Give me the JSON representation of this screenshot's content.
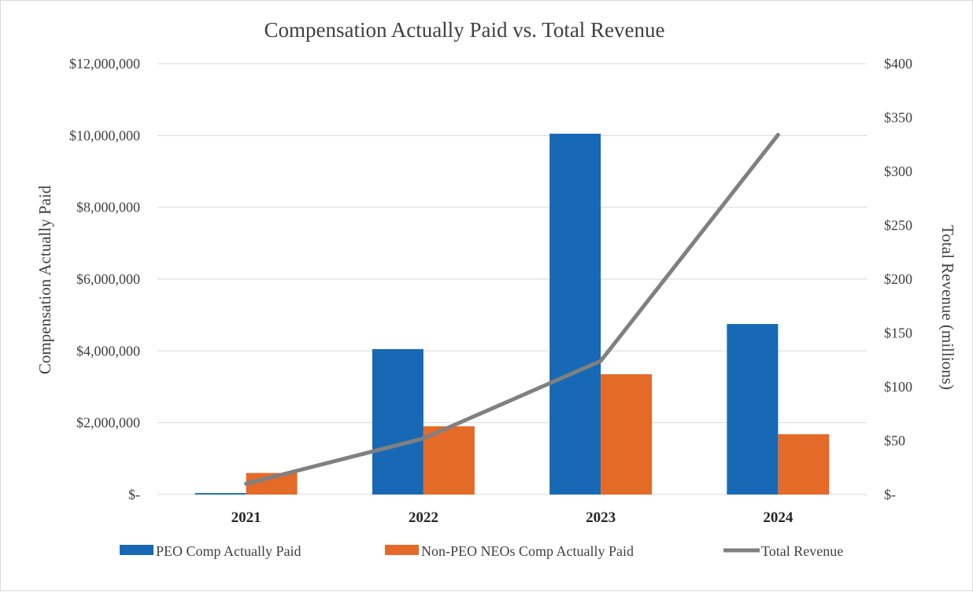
{
  "chart_data": {
    "type": "bar",
    "title": "Compensation Actually Paid vs. Total Revenue",
    "categories": [
      "2021",
      "2022",
      "2023",
      "2024"
    ],
    "ylabel": "Compensation Actually Paid",
    "y2label": "Total Revenue (millions)",
    "ylim": [
      0,
      12000000
    ],
    "y2lim": [
      0,
      400
    ],
    "y_ticks": [
      0,
      2000000,
      4000000,
      6000000,
      8000000,
      10000000,
      12000000
    ],
    "y_tick_labels": [
      "$-",
      "$2,000,000",
      "$4,000,000",
      "$6,000,000",
      "$8,000,000",
      "$10,000,000",
      "$12,000,000"
    ],
    "y2_ticks": [
      0,
      50,
      100,
      150,
      200,
      250,
      300,
      350,
      400
    ],
    "y2_tick_labels": [
      "$-",
      "$50",
      "$100",
      "$150",
      "$200",
      "$250",
      "$300",
      "$350",
      "$400"
    ],
    "grid": true,
    "legend_position": "bottom",
    "series": [
      {
        "name": "PEO Comp Actually Paid",
        "kind": "bar",
        "axis": "left",
        "color": "#1769b5",
        "values": [
          40000,
          4050000,
          10050000,
          4750000
        ]
      },
      {
        "name": "Non-PEO NEOs Comp Actually Paid",
        "kind": "bar",
        "axis": "left",
        "color": "#e46a28",
        "values": [
          600000,
          1900000,
          3350000,
          1680000
        ]
      },
      {
        "name": "Total Revenue",
        "kind": "line",
        "axis": "right",
        "color": "#808080",
        "values": [
          10,
          52,
          124,
          334
        ]
      }
    ]
  }
}
